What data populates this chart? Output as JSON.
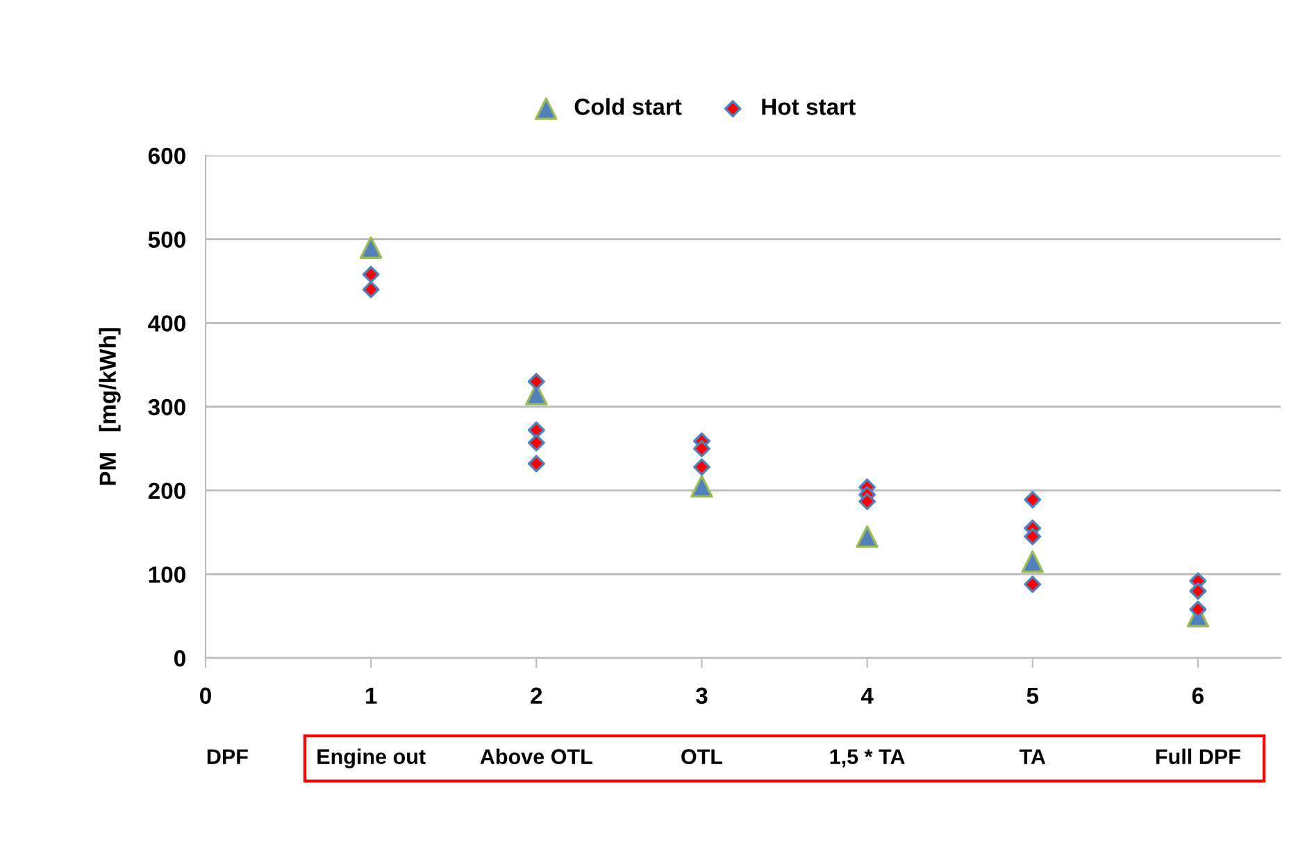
{
  "chart_data": {
    "type": "scatter",
    "ylabel": "PM   [mg/kWh]",
    "xlim": [
      0,
      6.5
    ],
    "xticks": [
      0,
      1,
      2,
      3,
      4,
      5,
      6
    ],
    "ylim": [
      0,
      600
    ],
    "yticks": [
      0,
      100,
      200,
      300,
      400,
      500,
      600
    ],
    "grid": "y",
    "legend": "top",
    "series": [
      {
        "name": "Cold start",
        "color": "#4f81bd",
        "marker": "triangle",
        "x": [
          1,
          2,
          3,
          4,
          5,
          6
        ],
        "values": [
          490,
          315,
          205,
          145,
          115,
          50
        ]
      },
      {
        "name": "Hot start",
        "color": "#ff0000",
        "marker": "diamond",
        "x": [
          1,
          1,
          2,
          2,
          2,
          2,
          3,
          3,
          3,
          4,
          4,
          4,
          5,
          5,
          5,
          5,
          6,
          6,
          6
        ],
        "values": [
          458,
          440,
          330,
          272,
          257,
          232,
          259,
          250,
          228,
          204,
          195,
          187,
          189,
          155,
          145,
          88,
          92,
          80,
          58
        ]
      }
    ],
    "annotations": [
      "DPF",
      "Engine out",
      "Above OTL",
      "OTL",
      "1,5 * TA",
      "TA",
      "Full DPF"
    ]
  }
}
